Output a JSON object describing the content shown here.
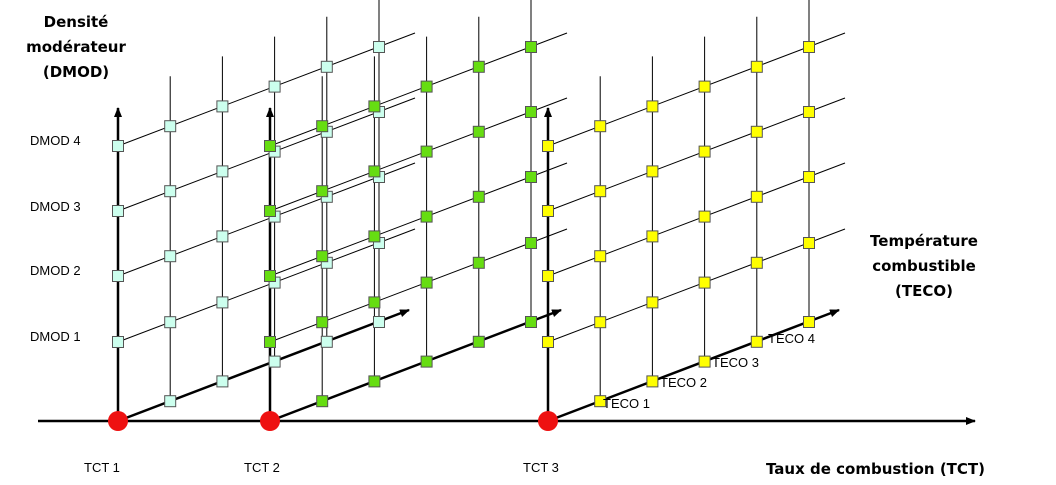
{
  "vertical_axis_title": [
    "Densité",
    "modérateur",
    "(DMOD)"
  ],
  "fuel_temperature_axis_title": [
    "Température",
    "combustible",
    "(TECO)"
  ],
  "burnup_axis_title": "Taux de combustion (TCT)",
  "dmod_labels": [
    "DMOD 1",
    "DMOD 2",
    "DMOD 3",
    "DMOD 4"
  ],
  "teco_labels": [
    "TECO 1",
    "TECO 2",
    "TECO 3",
    "TECO 4"
  ],
  "tct_labels": [
    "TCT 1",
    "TCT 2",
    "TCT 3"
  ],
  "grids": [
    {
      "name": "grid-tct-1",
      "tct": "TCT 1",
      "fill": "#ccffee"
    },
    {
      "name": "grid-tct-2",
      "tct": "TCT 2",
      "fill": "#66dd11"
    },
    {
      "name": "grid-tct-3",
      "tct": "TCT 3",
      "fill": "#ffff00"
    }
  ],
  "colors": {
    "tct_point": "#ee1111",
    "axis": "#000000",
    "grid_line": "#000000"
  }
}
